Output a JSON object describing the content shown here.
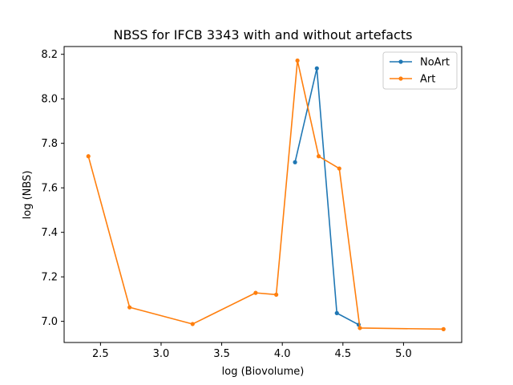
{
  "chart_data": {
    "type": "line",
    "title": "NBSS for IFCB 3343 with and without artefacts",
    "xlabel": "log (Biovolume)",
    "ylabel": "log (NBS)",
    "xlim": [
      2.2,
      5.48
    ],
    "ylim": [
      6.905,
      8.235
    ],
    "xticks": [
      2.5,
      3.0,
      3.5,
      4.0,
      4.5,
      5.0
    ],
    "xtick_labels": [
      "2.5",
      "3.0",
      "3.5",
      "4.0",
      "4.5",
      "5.0"
    ],
    "yticks": [
      7.0,
      7.2,
      7.4,
      7.6,
      7.8,
      8.0,
      8.2
    ],
    "ytick_labels": [
      "7.0",
      "7.2",
      "7.4",
      "7.6",
      "7.8",
      "8.0",
      "8.2"
    ],
    "grid": false,
    "legend_position": "upper right",
    "series": [
      {
        "name": "NoArt",
        "color": "#1f77b4",
        "marker": "dot",
        "x": [
          4.105,
          4.285,
          4.45,
          4.63
        ],
        "y": [
          7.715,
          8.137,
          7.037,
          6.985
        ]
      },
      {
        "name": "Art",
        "color": "#ff7f0e",
        "marker": "dot",
        "x": [
          2.4,
          2.74,
          3.26,
          3.78,
          3.95,
          4.125,
          4.3,
          4.47,
          4.64,
          5.33
        ],
        "y": [
          7.742,
          7.063,
          6.988,
          7.128,
          7.12,
          8.172,
          7.742,
          7.687,
          6.97,
          6.965
        ]
      }
    ]
  }
}
